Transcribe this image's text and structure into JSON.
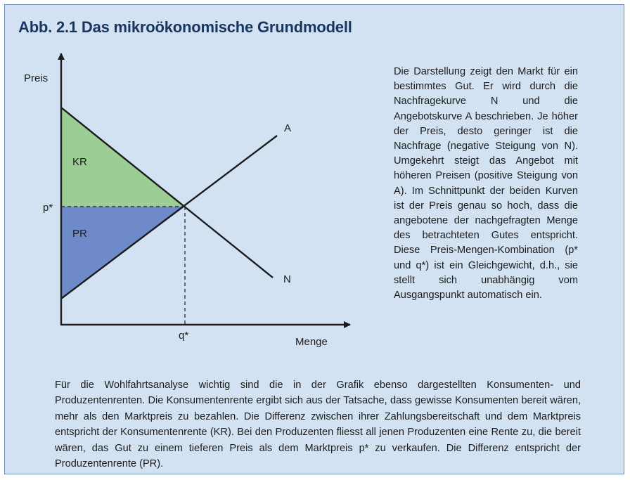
{
  "figure": {
    "title": "Abb. 2.1  Das mikroökonomische Grundmodell"
  },
  "diagram": {
    "y_axis_label": "Preis",
    "x_axis_label": "Menge",
    "supply_label": "A",
    "demand_label": "N",
    "consumer_surplus_label": "KR",
    "producer_surplus_label": "PR",
    "price_label": "p*",
    "quantity_label": "q*",
    "colors": {
      "consumer_surplus": "#9ccd95",
      "producer_surplus": "#6f8ac8",
      "panel_background": "#d3e2f3",
      "title": "#17355f"
    }
  },
  "side_text": "Die Darstellung zeigt den Markt für ein bestimmtes Gut. Er wird durch die Nachfragekurve N und die Angebotskurve A beschrieben. Je höher der Preis, desto geringer ist die Nachfrage (negative Steigung von N). Umgekehrt steigt das Angebot mit höheren Preisen (positive Steigung von A). Im Schnittpunkt der beiden Kurven ist der Preis genau so hoch, dass die angebotene der nachgefragten Menge des betrachteten Gutes entspricht. Diese Preis-Mengen-Kombination (p* und q*) ist ein Gleichgewicht, d.h., sie stellt sich unabhängig vom Ausgangspunkt automatisch ein.",
  "bottom_text": "Für die Wohlfahrtsanalyse wichtig sind die in der Grafik ebenso dargestellten Konsumenten- und Produzentenrenten. Die Konsumentenrente ergibt sich aus der Tatsache, dass gewisse Konsumenten bereit wären, mehr als den Marktpreis zu bezahlen. Die Differenz zwischen ihrer Zahlungsbereitschaft und dem Marktpreis entspricht der Konsumentenrente (KR). Bei den Produzenten fliesst all jenen Produzenten eine Rente zu, die bereit wären, das Gut zu einem tieferen Preis als dem Marktpreis p* zu verkaufen. Die Differenz entspricht der Produzentenrente (PR)."
}
